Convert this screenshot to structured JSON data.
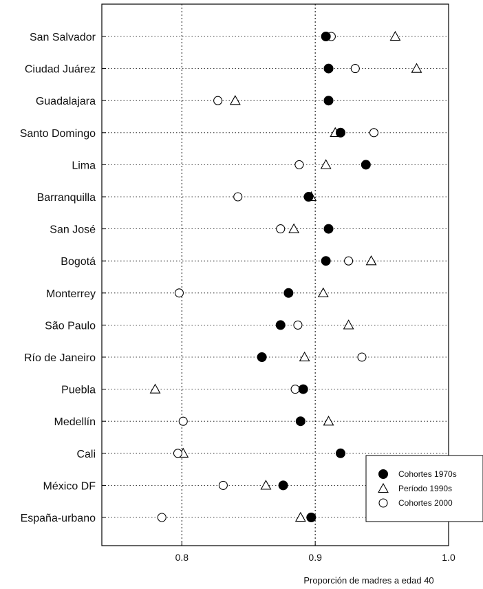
{
  "chart_data": {
    "type": "scatter",
    "subtype": "dot-plot",
    "xlabel": "Proporción de madres a edad 40",
    "ylabel": "",
    "xlim": [
      0.74,
      1.0
    ],
    "xticks": [
      0.8,
      0.9,
      1.0
    ],
    "xtick_labels": [
      "0.8",
      "0.9",
      "1.0"
    ],
    "grid": "vertical dashed at 0.8 and 0.9; horizontal dotted guide per category",
    "legend_position": "bottom-right",
    "categories": [
      "San Salvador",
      "Ciudad Juárez",
      "Guadalajara",
      "Santo Domingo",
      "Lima",
      "Barranquilla",
      "San José",
      "Bogotá",
      "Monterrey",
      "São Paulo",
      "Río de Janeiro",
      "Puebla",
      "Medellín",
      "Cali",
      "México DF",
      "España-urbano"
    ],
    "series": [
      {
        "name": "Cohortes 1970s",
        "marker": "filled-circle",
        "values": [
          0.908,
          0.91,
          0.91,
          0.919,
          0.938,
          0.895,
          0.91,
          0.908,
          0.88,
          0.874,
          0.86,
          0.891,
          0.889,
          0.919,
          0.876,
          0.897
        ]
      },
      {
        "name": "Período 1990s",
        "marker": "open-triangle",
        "values": [
          0.96,
          0.976,
          0.84,
          0.915,
          0.908,
          0.897,
          0.884,
          0.942,
          0.906,
          0.925,
          0.892,
          0.78,
          0.91,
          0.801,
          0.863,
          0.889
        ]
      },
      {
        "name": "Cohortes 2000",
        "marker": "open-circle",
        "values": [
          0.912,
          0.93,
          0.827,
          0.944,
          0.888,
          0.842,
          0.874,
          0.925,
          0.798,
          0.887,
          0.935,
          0.885,
          0.801,
          0.797,
          0.831,
          0.785
        ]
      }
    ]
  }
}
